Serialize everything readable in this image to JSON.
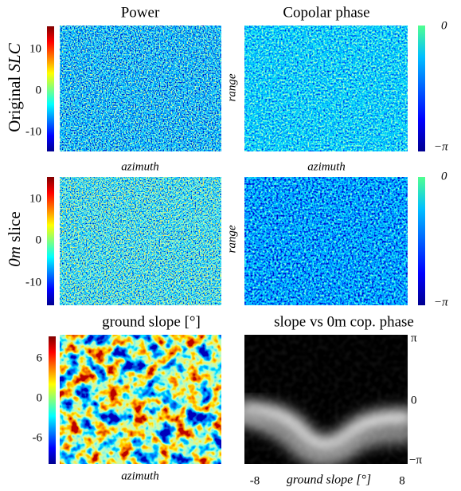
{
  "column_titles": [
    "Power",
    "Copolar phase"
  ],
  "row1_label": {
    "plain": "Original",
    "italic": "SLC"
  },
  "row2_label": {
    "italic": "0m",
    "plain": "slice"
  },
  "power_colorbar_ticks": [
    "10",
    "0",
    "-10"
  ],
  "phase_colorbar_ticks": [
    "0",
    "−π"
  ],
  "azimuth_label": "azimuth",
  "range_label": "range",
  "slope_title": "ground slope [°]",
  "slope_colorbar_ticks": [
    "6",
    "0",
    "-6"
  ],
  "histogram_title": "slope vs 0m cop. phase",
  "histogram_y_ticks": [
    "π",
    "0",
    "−π"
  ],
  "histogram_x_ticks": [
    "-8",
    "8"
  ],
  "histogram_x_label": "ground slope [°]"
}
